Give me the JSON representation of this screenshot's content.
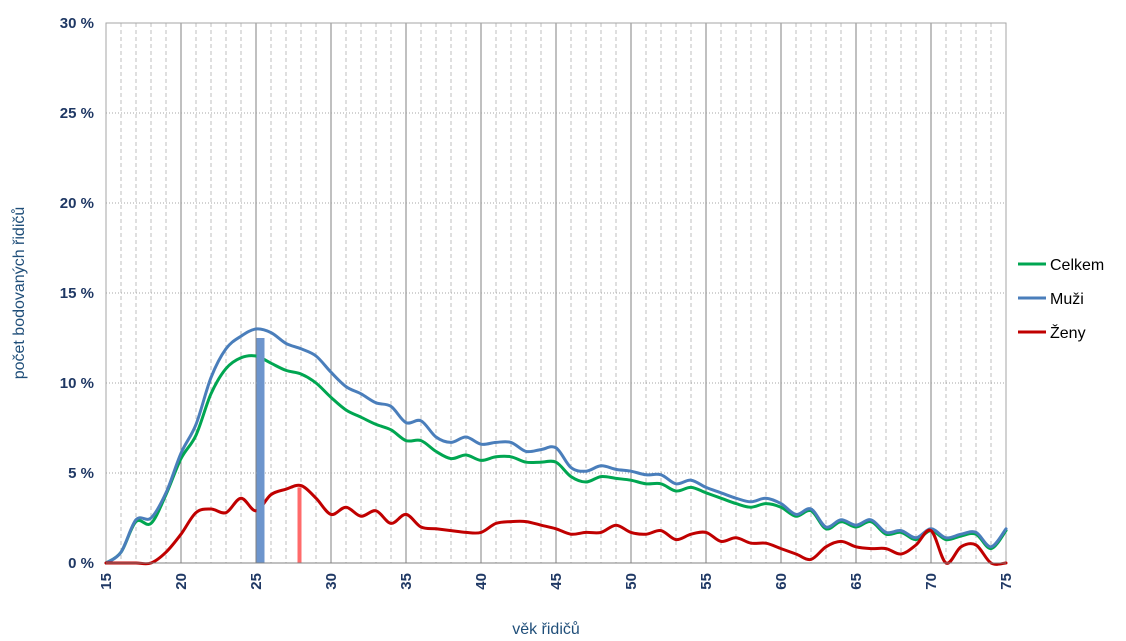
{
  "chart_data": {
    "type": "line",
    "xlabel": "věk řidičů",
    "ylabel": "počet bodovaných řidičů",
    "xlim": [
      15,
      75
    ],
    "ylim": [
      0,
      30
    ],
    "x_ticks": [
      "15",
      "20",
      "25",
      "30",
      "35",
      "40",
      "45",
      "50",
      "55",
      "60",
      "65",
      "70",
      "75"
    ],
    "y_ticks": [
      {
        "value": 0,
        "label": "0 %"
      },
      {
        "value": 5,
        "label": "5 %"
      },
      {
        "value": 10,
        "label": "10 %"
      },
      {
        "value": 15,
        "label": "15 %"
      },
      {
        "value": 20,
        "label": "20 %"
      },
      {
        "value": 25,
        "label": "25 %"
      },
      {
        "value": 30,
        "label": "30 %"
      }
    ],
    "grid": {
      "major_x": true,
      "minor_x": true,
      "major_y": true
    },
    "legend_position": "right",
    "x": [
      15,
      16,
      17,
      18,
      19,
      20,
      21,
      22,
      23,
      24,
      25,
      26,
      27,
      28,
      29,
      30,
      31,
      32,
      33,
      34,
      35,
      36,
      37,
      38,
      39,
      40,
      41,
      42,
      43,
      44,
      45,
      46,
      47,
      48,
      49,
      50,
      51,
      52,
      53,
      54,
      55,
      56,
      57,
      58,
      59,
      60,
      61,
      62,
      63,
      64,
      65,
      66,
      67,
      68,
      69,
      70,
      71,
      72,
      73,
      74,
      75
    ],
    "series": [
      {
        "name": "Celkem",
        "color": "#00a651",
        "values": [
          0,
          0.6,
          2.3,
          2.2,
          3.8,
          5.8,
          7.1,
          9.4,
          10.8,
          11.4,
          11.5,
          11.1,
          10.7,
          10.5,
          10,
          9.2,
          8.5,
          8.1,
          7.7,
          7.4,
          6.8,
          6.8,
          6.2,
          5.8,
          6,
          5.7,
          5.9,
          5.9,
          5.6,
          5.6,
          5.6,
          4.8,
          4.5,
          4.8,
          4.7,
          4.6,
          4.4,
          4.4,
          4,
          4.2,
          3.9,
          3.6,
          3.3,
          3.1,
          3.3,
          3.1,
          2.6,
          2.9,
          1.9,
          2.3,
          2,
          2.3,
          1.6,
          1.7,
          1.3,
          1.8,
          1.3,
          1.5,
          1.6,
          0.8,
          1.8
        ]
      },
      {
        "name": "Muži",
        "color": "#4a7ebb",
        "values": [
          0,
          0.6,
          2.4,
          2.5,
          3.9,
          6.1,
          7.7,
          10.3,
          11.9,
          12.6,
          13,
          12.8,
          12.2,
          11.9,
          11.5,
          10.6,
          9.8,
          9.4,
          8.9,
          8.7,
          7.8,
          7.9,
          7,
          6.7,
          7,
          6.6,
          6.7,
          6.7,
          6.2,
          6.3,
          6.4,
          5.3,
          5.1,
          5.4,
          5.2,
          5.1,
          4.9,
          4.9,
          4.4,
          4.6,
          4.2,
          3.9,
          3.6,
          3.4,
          3.6,
          3.3,
          2.7,
          3,
          2,
          2.4,
          2.1,
          2.4,
          1.7,
          1.8,
          1.4,
          1.9,
          1.4,
          1.6,
          1.7,
          0.9,
          1.9
        ]
      },
      {
        "name": "Ženy",
        "color": "#c00000",
        "values": [
          0,
          0,
          0,
          0,
          0.6,
          1.6,
          2.8,
          3,
          2.8,
          3.6,
          2.9,
          3.8,
          4.1,
          4.3,
          3.6,
          2.7,
          3.1,
          2.6,
          2.9,
          2.2,
          2.7,
          2,
          1.9,
          1.8,
          1.7,
          1.7,
          2.2,
          2.3,
          2.3,
          2.1,
          1.9,
          1.6,
          1.7,
          1.7,
          2.1,
          1.7,
          1.6,
          1.8,
          1.3,
          1.6,
          1.7,
          1.2,
          1.4,
          1.1,
          1.1,
          0.8,
          0.5,
          0.2,
          0.9,
          1.2,
          0.9,
          0.8,
          0.8,
          0.5,
          1,
          1.8,
          0,
          0.9,
          1,
          0,
          0
        ]
      }
    ],
    "markers": [
      {
        "series": "Muži",
        "x": 25.3,
        "y": 12.5,
        "color": "#6d95cd"
      },
      {
        "series": "Ženy",
        "x": 27.9,
        "y": 4.2,
        "color": "#ff6b6b"
      }
    ]
  }
}
